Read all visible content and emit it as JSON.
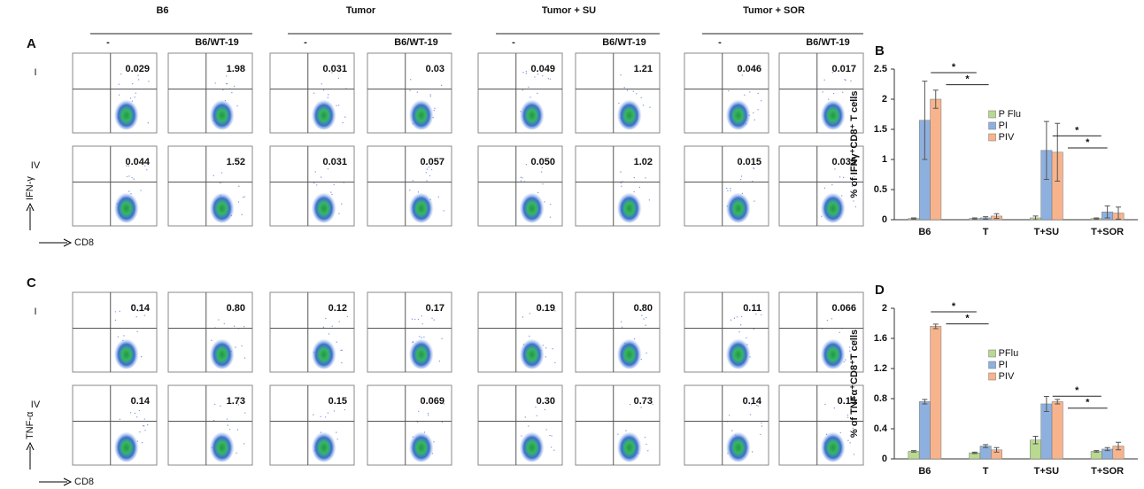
{
  "flow": {
    "groups": [
      {
        "name": "B6",
        "conditions": [
          "-",
          "B6/WT-19"
        ]
      },
      {
        "name": "Tumor",
        "conditions": [
          "-",
          "B6/WT-19"
        ]
      },
      {
        "name": "Tumor + SU",
        "conditions": [
          "-",
          "B6/WT-19"
        ]
      },
      {
        "name": "Tumor + SOR",
        "conditions": [
          "-",
          "B6/WT-19"
        ]
      }
    ],
    "panels": [
      {
        "letter": "A",
        "y_marker": "IFN-γ",
        "x_marker": "CD8",
        "rows": [
          "I",
          "IV"
        ],
        "values": [
          [
            "0.029",
            "1.98",
            "0.031",
            "0.03",
            "0.049",
            "1.21",
            "0.046",
            "0.017"
          ],
          [
            "0.044",
            "1.52",
            "0.031",
            "0.057",
            "0.050",
            "1.02",
            "0.015",
            "0.035"
          ]
        ]
      },
      {
        "letter": "C",
        "y_marker": "TNF-α",
        "x_marker": "CD8",
        "rows": [
          "I",
          "IV"
        ],
        "values": [
          [
            "0.14",
            "0.80",
            "0.12",
            "0.17",
            "0.19",
            "0.80",
            "0.11",
            "0.066"
          ],
          [
            "0.14",
            "1.73",
            "0.15",
            "0.069",
            "0.30",
            "0.73",
            "0.14",
            "0.15"
          ]
        ]
      }
    ]
  },
  "chart_data": [
    {
      "type": "bar",
      "panel": "B",
      "y_label": "% of IFNγ⁺CD8⁺ T cells",
      "categories": [
        "B6",
        "T",
        "T+SU",
        "T+SOR"
      ],
      "series": [
        {
          "name": "P Flu",
          "color": "#b9d98f",
          "values": [
            0.02,
            0.02,
            0.03,
            0.02
          ],
          "errors": [
            0.01,
            0.01,
            0.03,
            0.01
          ]
        },
        {
          "name": "PI",
          "color": "#8eb0de",
          "values": [
            1.65,
            0.03,
            1.15,
            0.13
          ],
          "errors": [
            0.65,
            0.02,
            0.48,
            0.1
          ]
        },
        {
          "name": "PIV",
          "color": "#f7b48c",
          "values": [
            2.0,
            0.06,
            1.12,
            0.11
          ],
          "errors": [
            0.15,
            0.04,
            0.48,
            0.1
          ]
        }
      ],
      "ylim": [
        0,
        2.5
      ],
      "yticks": [
        0,
        0.5,
        1,
        1.5,
        2,
        2.5
      ],
      "annotations": [
        "*",
        "*",
        "*",
        "*"
      ]
    },
    {
      "type": "bar",
      "panel": "D",
      "y_label": "% of TNFα⁺CD8⁺T cells",
      "categories": [
        "B6",
        "T",
        "T+SU",
        "T+SOR"
      ],
      "series": [
        {
          "name": "PFlu",
          "color": "#b9d98f",
          "values": [
            0.1,
            0.08,
            0.25,
            0.1
          ],
          "errors": [
            0.01,
            0.01,
            0.05,
            0.01
          ]
        },
        {
          "name": "PI",
          "color": "#8eb0de",
          "values": [
            0.76,
            0.17,
            0.73,
            0.13
          ],
          "errors": [
            0.03,
            0.02,
            0.1,
            0.02
          ]
        },
        {
          "name": "PIV",
          "color": "#f7b48c",
          "values": [
            1.76,
            0.12,
            0.76,
            0.17
          ],
          "errors": [
            0.03,
            0.03,
            0.03,
            0.05
          ]
        }
      ],
      "ylim": [
        0,
        2
      ],
      "yticks": [
        0,
        0.4,
        0.8,
        1.2,
        1.6,
        2
      ],
      "annotations": [
        "*",
        "*",
        "*",
        "*"
      ]
    }
  ]
}
